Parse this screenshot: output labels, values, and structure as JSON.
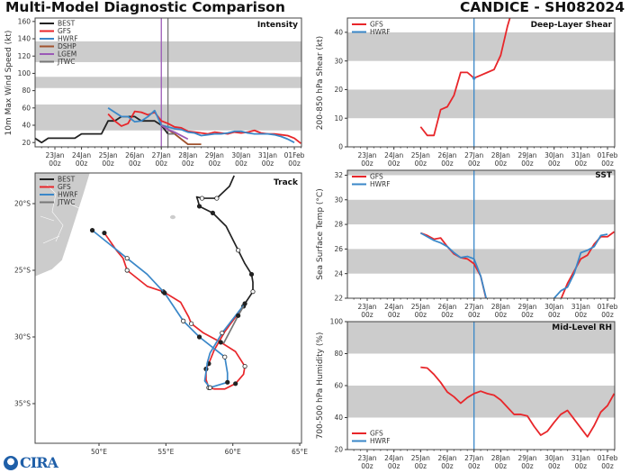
{
  "header": {
    "title": "Multi-Model Diagnostic Comparison",
    "storm": "CANDICE - SH082024"
  },
  "logo": {
    "text": "CIRA",
    "icon": "noaa-logo"
  },
  "time_ticks": [
    {
      "t": "2024-01-23T00",
      "day": "23Jan",
      "hour": "00z"
    },
    {
      "t": "2024-01-24T00",
      "day": "24Jan",
      "hour": "00z"
    },
    {
      "t": "2024-01-25T00",
      "day": "25Jan",
      "hour": "00z"
    },
    {
      "t": "2024-01-26T00",
      "day": "26Jan",
      "hour": "00z"
    },
    {
      "t": "2024-01-27T00",
      "day": "27Jan",
      "hour": "00z"
    },
    {
      "t": "2024-01-28T00",
      "day": "28Jan",
      "hour": "00z"
    },
    {
      "t": "2024-01-29T00",
      "day": "29Jan",
      "hour": "00z"
    },
    {
      "t": "2024-01-30T00",
      "day": "30Jan",
      "hour": "00z"
    },
    {
      "t": "2024-01-31T00",
      "day": "31Jan",
      "hour": "00z"
    },
    {
      "t": "2024-02-01T00",
      "day": "01Feb",
      "hour": "00z"
    }
  ],
  "chart_data": [
    {
      "type": "line",
      "title": "Intensity",
      "ylabel": "10m Max Wind Speed (kt)",
      "ylim": [
        15,
        164
      ],
      "yticks": [
        20,
        40,
        60,
        80,
        100,
        120,
        140,
        160
      ],
      "bands": [
        [
          34,
          64
        ],
        [
          83,
          96
        ],
        [
          113,
          137
        ]
      ],
      "band_color": "#cccccc",
      "legend": "top-left",
      "vlines": [
        {
          "t": "2024-01-27T00",
          "color": "#9b59b6"
        },
        {
          "t": "2024-01-27T06",
          "color": "#777777"
        }
      ],
      "series": [
        {
          "name": "BEST",
          "color": "#222222",
          "segments": [
            {
              "t0": "2024-01-22T06",
              "step_hours": 6,
              "values": [
                25,
                20,
                25,
                25,
                25,
                25,
                25,
                30,
                30,
                30,
                30,
                45,
                45,
                50,
                50,
                50,
                45,
                45,
                45,
                40,
                30
              ]
            }
          ]
        },
        {
          "name": "GFS",
          "color": "#e8262a",
          "segments": [
            {
              "t0": "2024-01-25T00",
              "step_hours": 6,
              "values": [
                53,
                45,
                39,
                42,
                56,
                55,
                52,
                55,
                45,
                42,
                38,
                37,
                33,
                32,
                31,
                30,
                32,
                31,
                30,
                32,
                31,
                32,
                34,
                31,
                30,
                30,
                29,
                28,
                25,
                19
              ]
            }
          ]
        },
        {
          "name": "HWRF",
          "color": "#3a87c8",
          "segments": [
            {
              "t0": "2024-01-25T00",
              "step_hours": 6,
              "values": [
                60,
                55,
                50,
                50,
                44,
                45,
                50,
                57,
                40,
                38,
                36,
                35,
                32,
                31,
                28,
                29,
                30,
                30,
                31,
                33,
                33,
                31,
                30,
                30,
                30,
                29,
                27,
                24,
                20
              ]
            }
          ]
        },
        {
          "name": "DSHP",
          "color": "#a0522d",
          "segments": [
            {
              "t0": "2024-01-27T00",
              "step_hours": 6,
              "values": [
                40,
                35,
                30,
                24,
                18,
                18,
                18
              ]
            }
          ]
        },
        {
          "name": "LGEM",
          "color": "#9b59b6",
          "segments": [
            {
              "t0": "2024-01-27T00",
              "step_hours": 6,
              "values": [
                40,
                35,
                32,
                28,
                24
              ]
            }
          ]
        },
        {
          "name": "JTWC",
          "color": "#777777",
          "segments": [
            {
              "t0": "2024-01-27T06",
              "step_hours": 6,
              "values": [
                30,
                30
              ]
            }
          ]
        }
      ]
    },
    {
      "type": "map",
      "title": "Track",
      "xlim": [
        45.2,
        65.1
      ],
      "ylim": [
        -38.0,
        -17.7
      ],
      "lon_ticks": [
        50,
        55,
        60,
        65
      ],
      "lon_labels": [
        "50°E",
        "55°E",
        "60°E",
        "65°E"
      ],
      "lat_ticks": [
        -20,
        -25,
        -30,
        -35
      ],
      "lat_labels": [
        "20°S",
        "25°S",
        "30°S",
        "35°S"
      ],
      "land_color": "#cccccc",
      "legend": "top-left",
      "series": [
        {
          "name": "BEST",
          "color": "#222222",
          "points": [
            [
              60.1,
              -17.9,
              ""
            ],
            [
              59.75,
              -18.7,
              ""
            ],
            [
              58.8,
              -19.6,
              "o"
            ],
            [
              57.7,
              -19.6,
              "o"
            ],
            [
              57.3,
              -19.5,
              ""
            ],
            [
              57.4,
              -19.8,
              ""
            ],
            [
              57.5,
              -20.2,
              "f"
            ],
            [
              58.5,
              -20.7,
              "f"
            ],
            [
              59.5,
              -21.7,
              ""
            ],
            [
              60.4,
              -23.5,
              "o"
            ],
            [
              60.9,
              -24.5,
              ""
            ],
            [
              61.4,
              -25.3,
              "f"
            ],
            [
              61.5,
              -25.9,
              ""
            ],
            [
              61.5,
              -26.6,
              "o"
            ],
            [
              60.9,
              -27.5,
              ""
            ]
          ]
        },
        {
          "name": "GFS",
          "color": "#e8262a",
          "points": [
            [
              60.8,
              -27.7,
              "f"
            ],
            [
              59.4,
              -29.6,
              ""
            ],
            [
              58.6,
              -31.0,
              ""
            ],
            [
              58.2,
              -32.0,
              "f"
            ],
            [
              58.0,
              -32.4,
              "f"
            ],
            [
              58.0,
              -33.2,
              ""
            ],
            [
              58.2,
              -33.8,
              "o"
            ],
            [
              58.6,
              -33.9,
              ""
            ],
            [
              59.4,
              -33.9,
              ""
            ],
            [
              60.2,
              -33.5,
              "f"
            ],
            [
              60.8,
              -32.8,
              ""
            ],
            [
              60.9,
              -32.2,
              "o"
            ],
            [
              60.2,
              -31.1,
              ""
            ],
            [
              59.1,
              -30.4,
              "f"
            ],
            [
              57.8,
              -29.7,
              ""
            ],
            [
              56.9,
              -29.0,
              "o"
            ],
            [
              56.7,
              -28.5,
              ""
            ],
            [
              56.1,
              -27.4,
              ""
            ],
            [
              54.8,
              -26.6,
              "f"
            ],
            [
              53.6,
              -26.2,
              ""
            ],
            [
              52.1,
              -25.0,
              "o"
            ],
            [
              51.8,
              -24.1,
              ""
            ],
            [
              51.3,
              -23.5,
              ""
            ],
            [
              50.4,
              -22.2,
              "f"
            ]
          ]
        },
        {
          "name": "HWRF",
          "color": "#3a87c8",
          "points": [
            [
              60.9,
              -27.5,
              "f"
            ],
            [
              59.2,
              -29.7,
              "o"
            ],
            [
              58.3,
              -31.2,
              ""
            ],
            [
              58.1,
              -31.9,
              ""
            ],
            [
              57.9,
              -33.3,
              ""
            ],
            [
              58.3,
              -33.8,
              "o"
            ],
            [
              59.6,
              -33.4,
              "f"
            ],
            [
              59.6,
              -32.7,
              ""
            ],
            [
              59.4,
              -31.5,
              "o"
            ],
            [
              57.5,
              -30.0,
              "f"
            ],
            [
              56.3,
              -28.8,
              "o"
            ],
            [
              54.9,
              -26.7,
              "f"
            ],
            [
              53.6,
              -25.3,
              ""
            ],
            [
              52.1,
              -24.1,
              "o"
            ],
            [
              49.5,
              -22.0,
              "f"
            ]
          ]
        },
        {
          "name": "JTWC",
          "color": "#777777",
          "points": [
            [
              60.8,
              -27.7,
              ""
            ],
            [
              60.4,
              -28.4,
              "f"
            ],
            [
              59.3,
              -30.5,
              ""
            ]
          ]
        }
      ]
    },
    {
      "type": "line",
      "title": "Deep-Layer Shear",
      "ylabel": "200-850 hPa Shear (kt)",
      "ylim": [
        0,
        45
      ],
      "yticks": [
        0,
        10,
        20,
        30,
        40
      ],
      "bands": [
        [
          10,
          20
        ],
        [
          30,
          40
        ]
      ],
      "band_color": "#cccccc",
      "legend": "top-left",
      "vlines": [
        {
          "t": "2024-01-27T00",
          "color": "#3a87c8"
        }
      ],
      "series": [
        {
          "name": "GFS",
          "color": "#e8262a",
          "segments": [
            {
              "t0": "2024-01-25T00",
              "step_hours": 6,
              "values": [
                7,
                4,
                4,
                13,
                14,
                18,
                26,
                26,
                24,
                25,
                26,
                27,
                32,
                42,
                50
              ]
            }
          ]
        },
        {
          "name": "HWRF",
          "color": "#3a87c8",
          "segments": [
            {
              "t0": "2024-01-27T00",
              "step_hours": 6,
              "values": [
                24
              ]
            }
          ]
        }
      ]
    },
    {
      "type": "line",
      "title": "SST",
      "ylabel": "Sea Surface Temp (°C)",
      "ylim": [
        22,
        32.4
      ],
      "yticks": [
        22,
        24,
        26,
        28,
        30,
        32
      ],
      "bands": [
        [
          24,
          26
        ],
        [
          28,
          30
        ],
        [
          32,
          32.4
        ]
      ],
      "band_color": "#cccccc",
      "legend": "top-left",
      "vlines": [
        {
          "t": "2024-01-27T00",
          "color": "#3a87c8"
        }
      ],
      "series": [
        {
          "name": "GFS",
          "color": "#e8262a",
          "segments": [
            {
              "t0": "2024-01-25T00",
              "step_hours": 6,
              "values": [
                27.3,
                27.1,
                26.8,
                26.9,
                26.2,
                25.6,
                25.3,
                25.2,
                24.8,
                23.8,
                21.5
              ]
            },
            {
              "t0": "2024-01-30T06",
              "step_hours": 6,
              "values": [
                21.9,
                23.2,
                24.2,
                25.2,
                25.5,
                26.4,
                27.0,
                27.0,
                27.4
              ]
            }
          ]
        },
        {
          "name": "HWRF",
          "color": "#3a87c8",
          "segments": [
            {
              "t0": "2024-01-25T00",
              "step_hours": 6,
              "values": [
                27.3,
                27.0,
                26.7,
                26.5,
                26.2,
                25.7,
                25.3,
                25.4,
                25.2,
                23.8,
                21.6
              ]
            },
            {
              "t0": "2024-01-30T00",
              "step_hours": 6,
              "values": [
                22.0,
                22.6,
                22.9,
                24.0,
                25.7,
                25.9,
                26.2,
                27.1,
                27.2
              ]
            }
          ]
        }
      ]
    },
    {
      "type": "line",
      "title": "Mid-Level RH",
      "ylabel": "700-500 hPa Humidity (%)",
      "ylim": [
        20,
        100
      ],
      "yticks": [
        20,
        40,
        60,
        80,
        100
      ],
      "bands": [
        [
          40,
          60
        ],
        [
          80,
          100
        ]
      ],
      "band_color": "#cccccc",
      "legend": "bottom-left",
      "vlines": [
        {
          "t": "2024-01-27T00",
          "color": "#3a87c8"
        }
      ],
      "series": [
        {
          "name": "GFS",
          "color": "#e8262a",
          "segments": [
            {
              "t0": "2024-01-25T00",
              "step_hours": 6,
              "values": [
                71.5,
                71,
                67,
                62,
                56,
                53,
                49,
                52.5,
                55,
                56.5,
                55,
                54,
                51,
                46.5,
                42,
                42,
                41,
                34.5,
                29,
                31.5,
                37,
                42,
                44.5,
                39,
                33.5,
                28,
                35,
                43.5,
                47.5,
                55
              ]
            }
          ]
        },
        {
          "name": "HWRF",
          "color": "#3a87c8",
          "segments": []
        }
      ]
    }
  ]
}
